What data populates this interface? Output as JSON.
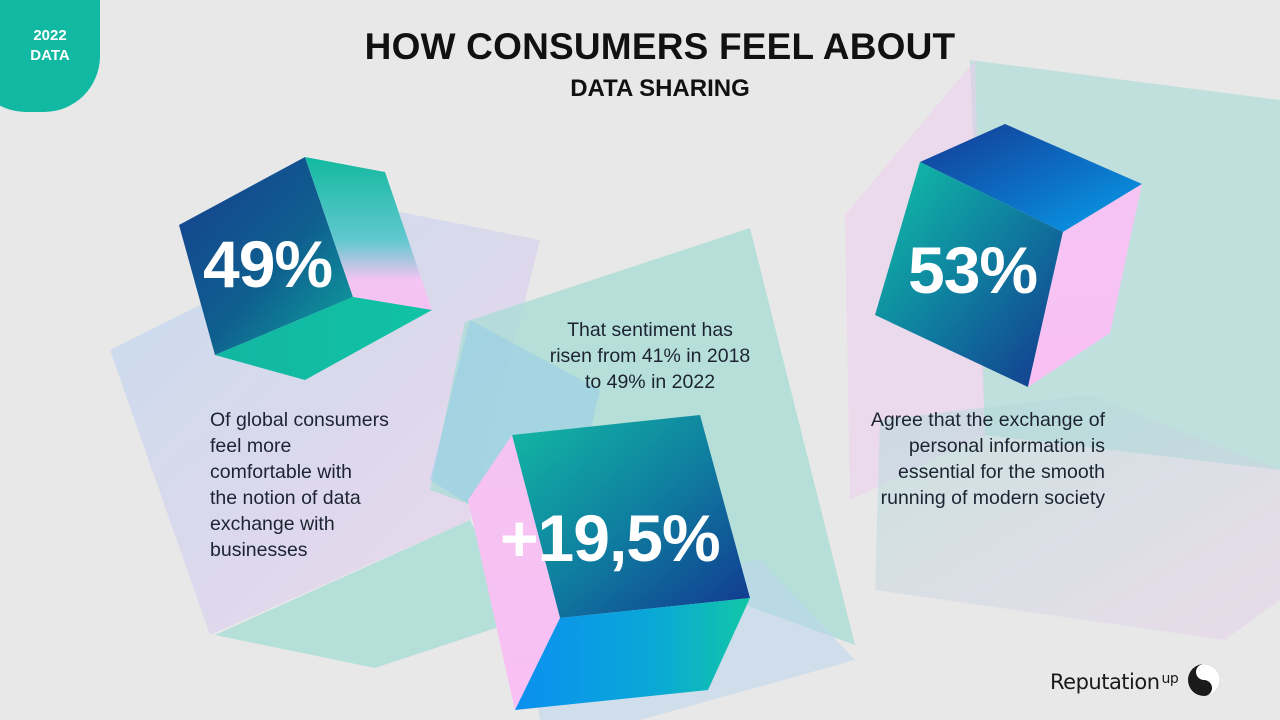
{
  "badge": {
    "line1": "2022",
    "line2": "DATA"
  },
  "header": {
    "title": "HOW CONSUMERS FEEL ABOUT",
    "subtitle": "DATA SHARING"
  },
  "stats": [
    {
      "value": "49%",
      "description": [
        "Of global consumers",
        "feel more",
        "comfortable with",
        "the notion of data",
        "exchange with",
        "businesses"
      ]
    },
    {
      "value": "+19,5%",
      "description": [
        "That sentiment has",
        "risen from 41% in 2018",
        "to 49% in 2022"
      ]
    },
    {
      "value": "53%",
      "description": [
        "Agree that the exchange of",
        "personal information is",
        "essential for the smooth",
        "running of modern society"
      ]
    }
  ],
  "logo": {
    "text": "Reputation",
    "sup": "up"
  },
  "colors": {
    "teal": "#11b8a2",
    "navy": "#12358f",
    "pink": "#f6c2f2",
    "blue": "#0a9be8",
    "background": "#e8e8e8"
  }
}
